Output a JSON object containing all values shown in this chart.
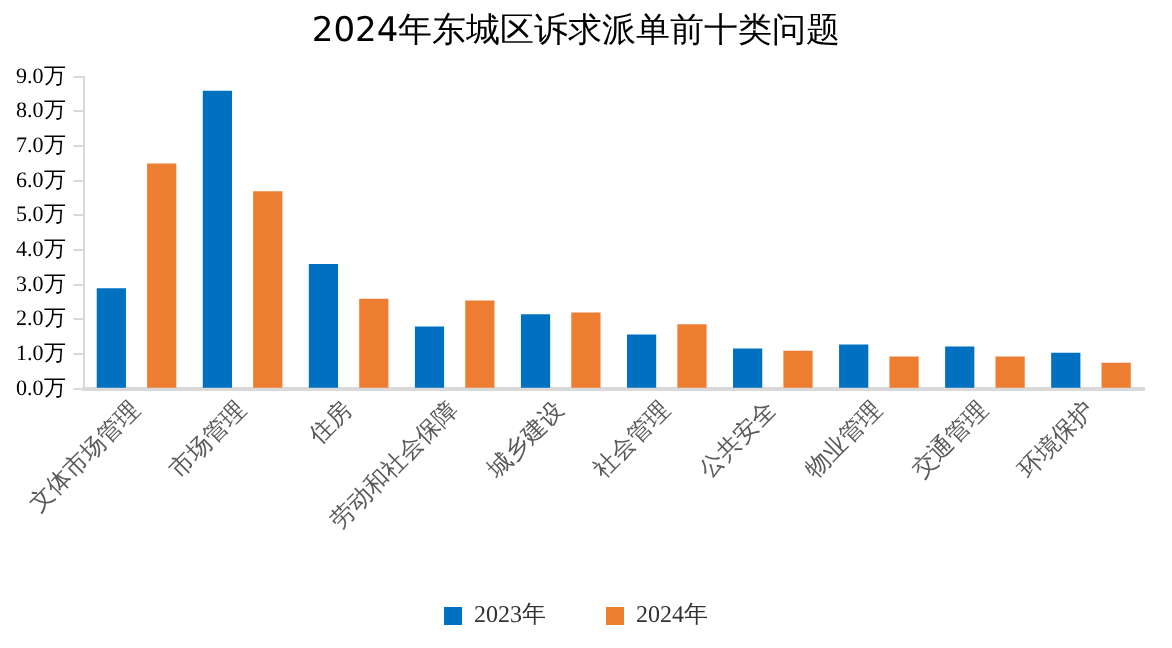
{
  "chart_data": {
    "type": "bar",
    "title": "2024年东城区诉求派单前十类问题",
    "categories": [
      "文体市场管理",
      "市场管理",
      "住房",
      "劳动和社会保障",
      "城乡建设",
      "社会管理",
      "公共安全",
      "物业管理",
      "交通管理",
      "环境保护"
    ],
    "series": [
      {
        "name": "2023年",
        "color": "#0070c0",
        "values": [
          2.9,
          8.6,
          3.6,
          1.8,
          2.15,
          1.57,
          1.16,
          1.28,
          1.22,
          1.04
        ]
      },
      {
        "name": "2024年",
        "color": "#ed7d31",
        "values": [
          6.5,
          5.7,
          2.6,
          2.55,
          2.2,
          1.86,
          1.1,
          0.93,
          0.93,
          0.75
        ]
      }
    ],
    "ylim": [
      0,
      9
    ],
    "yticks": [
      {
        "value": 0,
        "label": "0.0万"
      },
      {
        "value": 1,
        "label": "1.0万"
      },
      {
        "value": 2,
        "label": "2.0万"
      },
      {
        "value": 3,
        "label": "3.0万"
      },
      {
        "value": 4,
        "label": "4.0万"
      },
      {
        "value": 5,
        "label": "5.0万"
      },
      {
        "value": 6,
        "label": "6.0万"
      },
      {
        "value": 7,
        "label": "7.0万"
      },
      {
        "value": 8,
        "label": "8.0万"
      },
      {
        "value": 9,
        "label": "9.0万"
      }
    ],
    "grid": false,
    "legend": "bottom"
  }
}
